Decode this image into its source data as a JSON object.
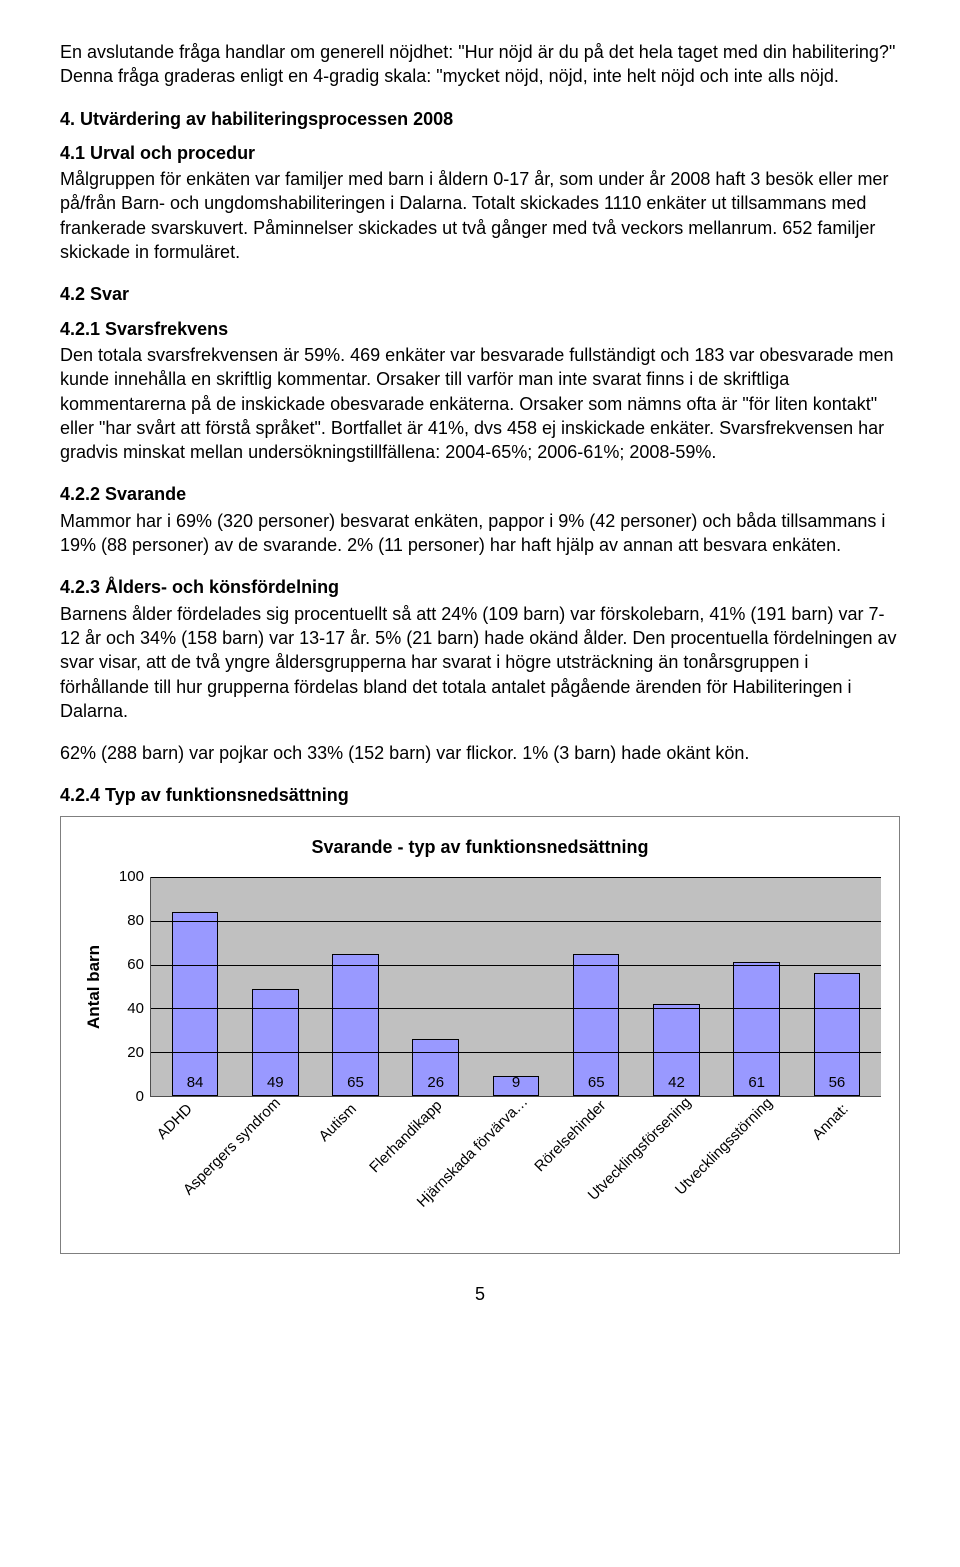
{
  "para_intro": "En avslutande fråga handlar om generell nöjdhet: \"Hur nöjd är du på det hela taget med din habilitering?\" Denna fråga graderas enligt en 4-gradig skala: \"mycket nöjd, nöjd, inte helt nöjd och inte alls nöjd.",
  "sec4_title": "4. Utvärdering av habiliteringsprocessen 2008",
  "sec41_title": "4.1 Urval och procedur",
  "sec41_body": "Målgruppen för enkäten var familjer med barn i åldern 0-17 år, som under år 2008 haft 3 besök eller mer på/från Barn- och ungdomshabiliteringen i Dalarna. Totalt skickades 1110 enkäter ut tillsammans med frankerade svarskuvert. Påminnelser skickades ut två gånger med två veckors mellanrum. 652 familjer skickade in formuläret.",
  "sec42_title": "4.2 Svar",
  "sec421_title": "4.2.1 Svarsfrekvens",
  "sec421_body": "Den totala svarsfrekvensen är 59%. 469 enkäter var besvarade fullständigt och 183 var obesvarade men kunde innehålla en skriftlig kommentar. Orsaker till varför man inte svarat finns i de skriftliga kommentarerna på de inskickade obesvarade enkäterna. Orsaker som nämns ofta är \"för liten kontakt\" eller \"har svårt att förstå språket\". Bortfallet är 41%, dvs 458 ej inskickade enkäter. Svarsfrekvensen har gradvis minskat mellan undersökningstillfällena: 2004-65%; 2006-61%; 2008-59%.",
  "sec422_title": "4.2.2 Svarande",
  "sec422_body": "Mammor har i 69% (320 personer) besvarat enkäten, pappor i 9% (42 personer) och båda tillsammans i 19% (88 personer) av de svarande. 2% (11 personer) har haft hjälp av annan att besvara enkäten.",
  "sec423_title": "4.2.3 Ålders- och könsfördelning",
  "sec423_body1": "Barnens ålder fördelades sig procentuellt så att 24% (109 barn) var förskolebarn, 41% (191 barn) var 7-12 år och 34% (158 barn) var 13-17 år. 5% (21 barn) hade okänd ålder. Den procentuella fördelningen av svar visar, att de två yngre åldersgrupperna har svarat i högre utsträckning än tonårsgruppen i förhållande till hur grupperna fördelas bland det totala antalet pågående ärenden för Habiliteringen i Dalarna.",
  "sec423_body2": "62% (288 barn) var pojkar och 33% (152 barn) var flickor. 1% (3 barn) hade okänt kön.",
  "sec424_title": "4.2.4 Typ av funktionsnedsättning",
  "chart": {
    "type": "bar",
    "title": "Svarande - typ av funktionsnedsättning",
    "ylabel": "Antal barn",
    "ylim_max": 100,
    "ytick_step": 20,
    "bar_color": "#9999ff",
    "bar_border": "#000000",
    "plot_bg": "#c0c0c0",
    "grid_color": "#000000",
    "categories": [
      "ADHD",
      "Aspergers syndrom",
      "Autism",
      "Flerhandikapp",
      "Hjärnskada förvärva…",
      "Rörelsehinder",
      "Utvecklingsförsening",
      "Utvecklingsstörning",
      "Annat:"
    ],
    "values": [
      84,
      49,
      65,
      26,
      9,
      65,
      42,
      61,
      56
    ]
  },
  "page_number": "5"
}
